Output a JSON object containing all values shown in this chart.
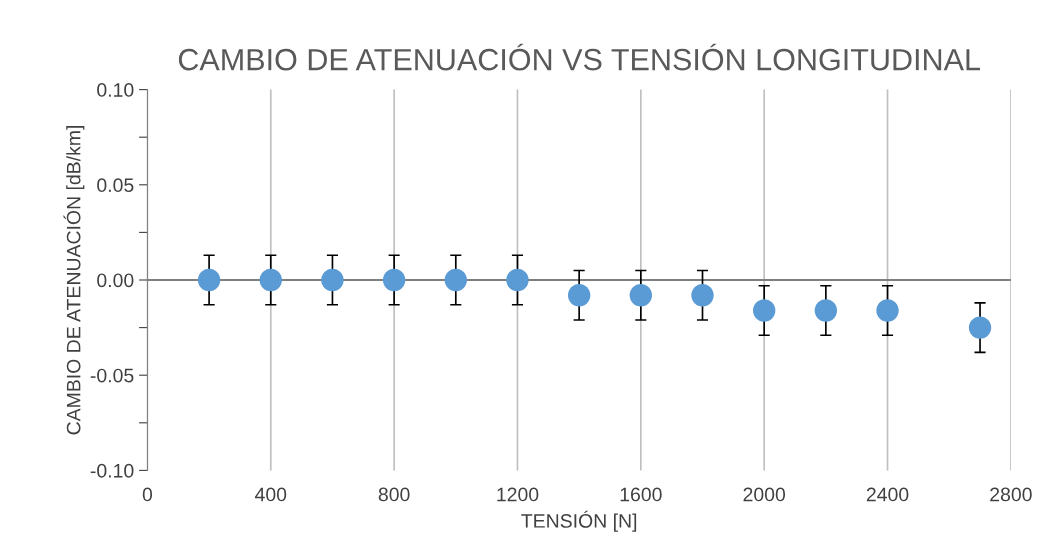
{
  "chart_data": {
    "type": "scatter",
    "title": "CAMBIO DE ATENUACIÓN VS TENSIÓN LONGITUDINAL",
    "xlabel": "TENSIÓN [N]",
    "ylabel": "CAMBIO DE ATENUACIÓN [dB/km]",
    "x": [
      200,
      400,
      600,
      800,
      1000,
      1200,
      1400,
      1600,
      1800,
      2000,
      2200,
      2400,
      2700
    ],
    "values": [
      0,
      0,
      0,
      0,
      0,
      0,
      -0.008,
      -0.008,
      -0.008,
      -0.016,
      -0.016,
      -0.016,
      -0.025
    ],
    "errors": [
      0.013,
      0.013,
      0.013,
      0.013,
      0.013,
      0.013,
      0.013,
      0.013,
      0.013,
      0.013,
      0.013,
      0.013,
      0.013
    ],
    "color": "#5b9bd5",
    "marker": "circle",
    "xlim": [
      0,
      2800
    ],
    "xticks": [
      0,
      400,
      800,
      1200,
      1600,
      2000,
      2400,
      2800
    ],
    "ylim": [
      -0.1,
      0.1
    ],
    "yticks": [
      {
        "value": -0.1,
        "label": "-0.10"
      },
      {
        "value": -0.075,
        "label": null
      },
      {
        "value": -0.05,
        "label": "-0.05"
      },
      {
        "value": -0.025,
        "label": null
      },
      {
        "value": 0,
        "label": "0.00"
      },
      {
        "value": 0.025,
        "label": null
      },
      {
        "value": 0.05,
        "label": "0.05"
      },
      {
        "value": 0.075,
        "label": null
      },
      {
        "value": 0.1,
        "label": "0.10"
      }
    ],
    "ref_lines": [
      {
        "axis": "y",
        "value": 0,
        "color": "#7f7f7f"
      }
    ],
    "grid": "x"
  }
}
